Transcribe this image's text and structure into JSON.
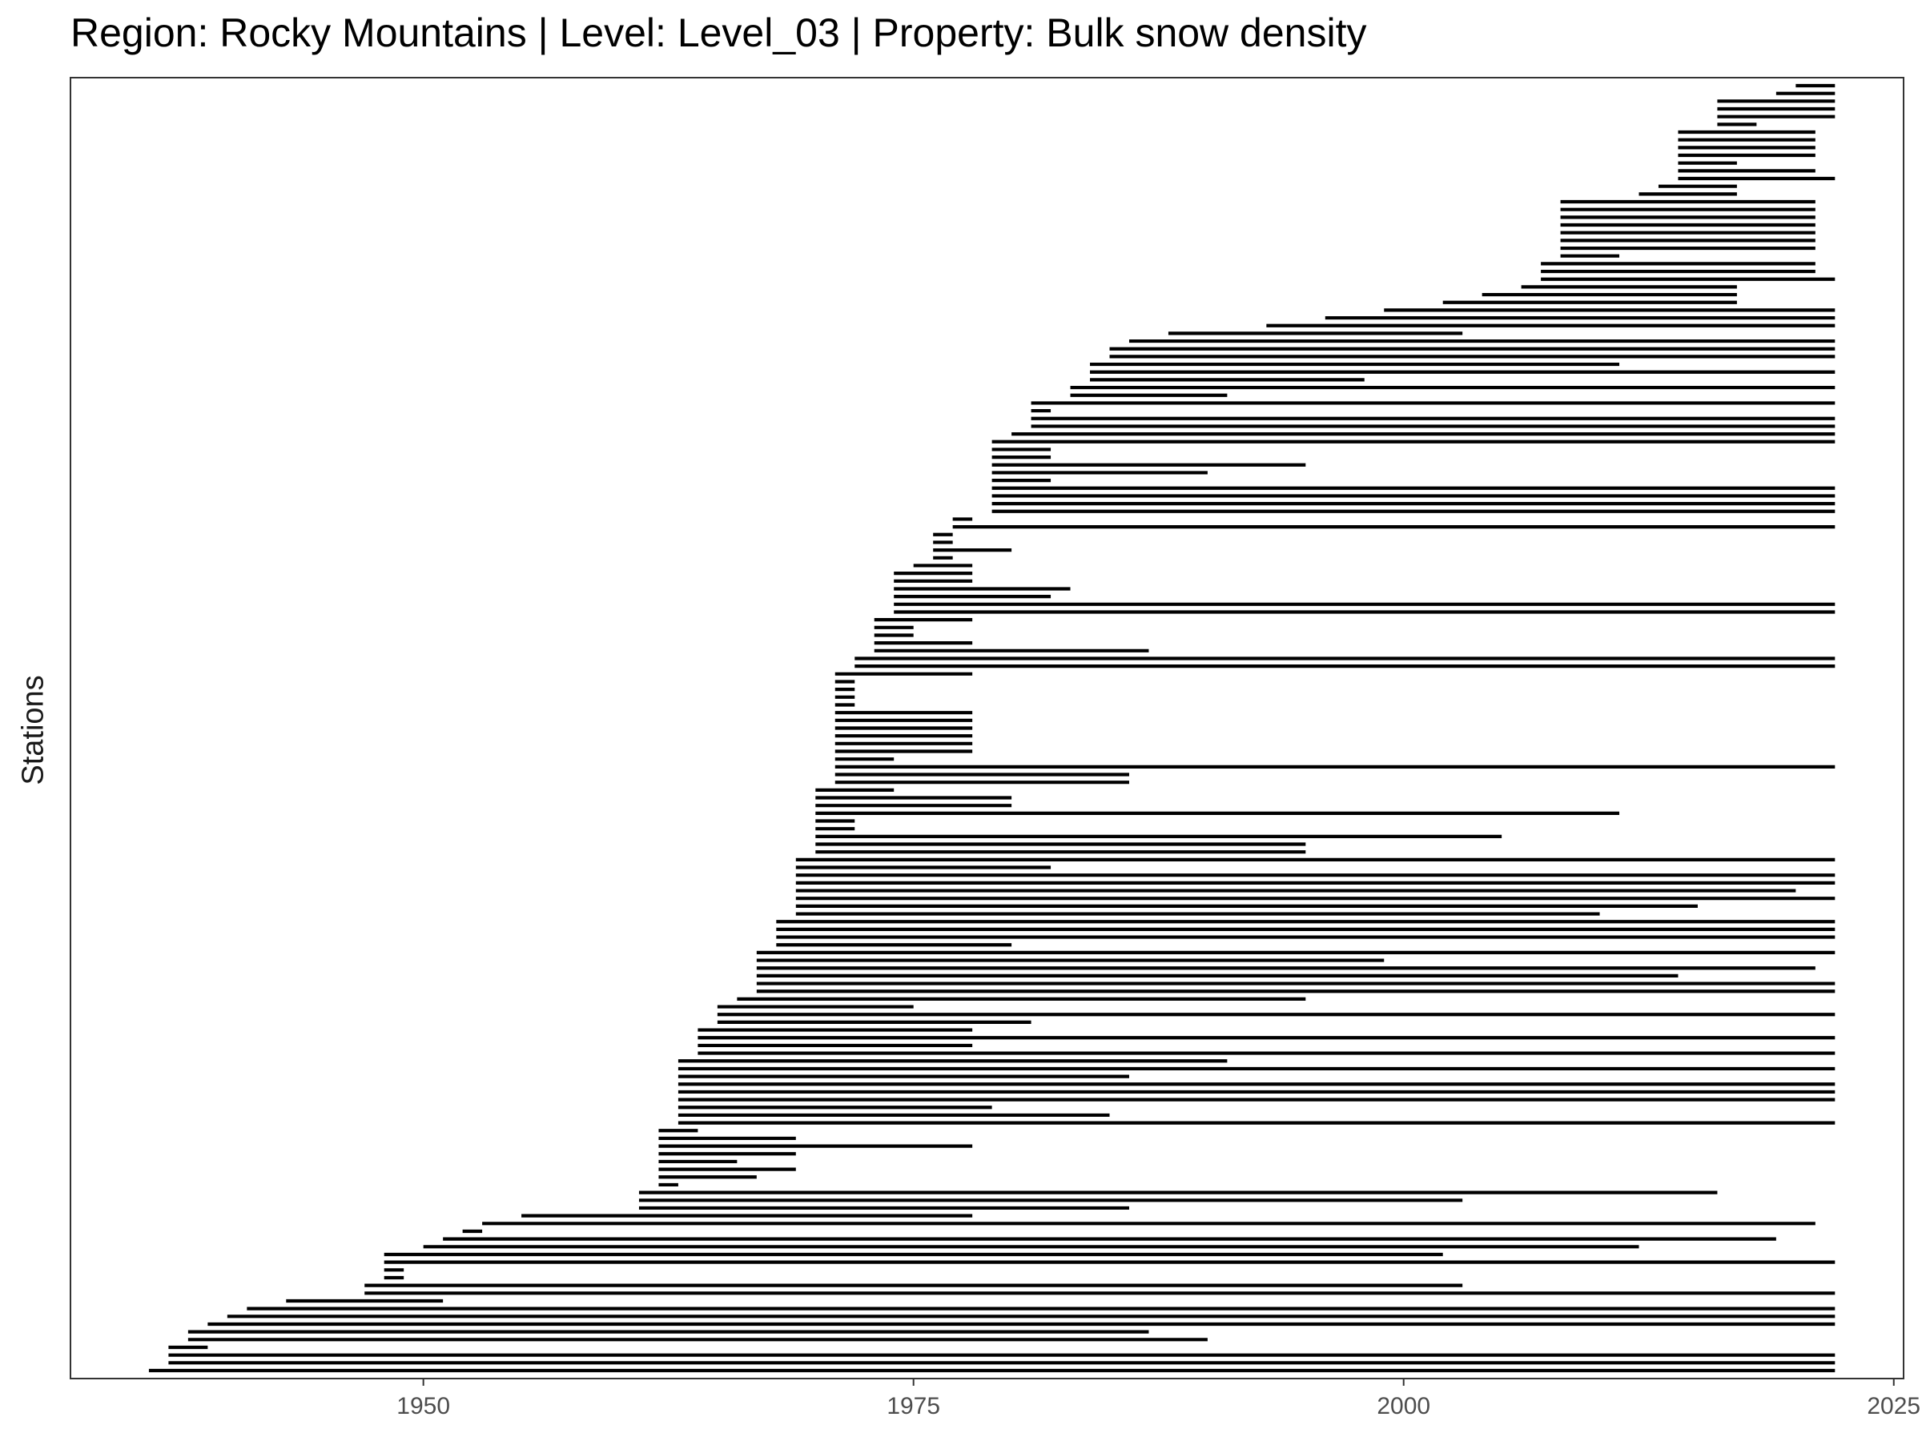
{
  "chart_data": {
    "type": "bar",
    "orientation": "horizontal-range",
    "title": "Region: Rocky Mountains | Level: Level_03 | Property: Bulk snow density",
    "xlabel": "",
    "ylabel": "Stations",
    "xlim": [
      1932,
      2025.5
    ],
    "x_ticks": [
      1950,
      1975,
      2000,
      2025
    ],
    "grid": false,
    "legend": "none",
    "bar_color": "#000000",
    "segments": [
      [
        2020,
        2022
      ],
      [
        2019,
        2022
      ],
      [
        2016,
        2022
      ],
      [
        2016,
        2022
      ],
      [
        2016,
        2022
      ],
      [
        2016,
        2018
      ],
      [
        2014,
        2021
      ],
      [
        2014,
        2021
      ],
      [
        2014,
        2021
      ],
      [
        2014,
        2021
      ],
      [
        2014,
        2017
      ],
      [
        2014,
        2021
      ],
      [
        2014,
        2022
      ],
      [
        2013,
        2017
      ],
      [
        2012,
        2017
      ],
      [
        2008,
        2021
      ],
      [
        2008,
        2021
      ],
      [
        2008,
        2021
      ],
      [
        2008,
        2021
      ],
      [
        2008,
        2021
      ],
      [
        2008,
        2021
      ],
      [
        2008,
        2021
      ],
      [
        2008,
        2011
      ],
      [
        2007,
        2021
      ],
      [
        2007,
        2021
      ],
      [
        2007,
        2022
      ],
      [
        2006,
        2017
      ],
      [
        2004,
        2017
      ],
      [
        2002,
        2017
      ],
      [
        1999,
        2022
      ],
      [
        1996,
        2022
      ],
      [
        1993,
        2022
      ],
      [
        1988,
        2003
      ],
      [
        1986,
        2022
      ],
      [
        1985,
        2022
      ],
      [
        1985,
        2022
      ],
      [
        1984,
        2011
      ],
      [
        1984,
        2022
      ],
      [
        1984,
        1998
      ],
      [
        1983,
        2022
      ],
      [
        1983,
        1991
      ],
      [
        1981,
        2022
      ],
      [
        1981,
        1982
      ],
      [
        1981,
        2022
      ],
      [
        1981,
        2022
      ],
      [
        1980,
        2022
      ],
      [
        1979,
        2022
      ],
      [
        1979,
        1982
      ],
      [
        1979,
        1982
      ],
      [
        1979,
        1995
      ],
      [
        1979,
        1990
      ],
      [
        1979,
        1982
      ],
      [
        1979,
        2022
      ],
      [
        1979,
        2022
      ],
      [
        1979,
        2022
      ],
      [
        1979,
        2022
      ],
      [
        1977,
        1978
      ],
      [
        1977,
        2022
      ],
      [
        1976,
        1977
      ],
      [
        1976,
        1977
      ],
      [
        1976,
        1980
      ],
      [
        1976,
        1977
      ],
      [
        1975,
        1978
      ],
      [
        1974,
        1978
      ],
      [
        1974,
        1978
      ],
      [
        1974,
        1983
      ],
      [
        1974,
        1982
      ],
      [
        1974,
        2022
      ],
      [
        1974,
        2022
      ],
      [
        1973,
        1978
      ],
      [
        1973,
        1975
      ],
      [
        1973,
        1975
      ],
      [
        1973,
        1978
      ],
      [
        1973,
        1987
      ],
      [
        1972,
        2022
      ],
      [
        1972,
        2022
      ],
      [
        1971,
        1978
      ],
      [
        1971,
        1972
      ],
      [
        1971,
        1972
      ],
      [
        1971,
        1972
      ],
      [
        1971,
        1972
      ],
      [
        1971,
        1978
      ],
      [
        1971,
        1978
      ],
      [
        1971,
        1978
      ],
      [
        1971,
        1978
      ],
      [
        1971,
        1978
      ],
      [
        1971,
        1978
      ],
      [
        1971,
        1974
      ],
      [
        1971,
        2022
      ],
      [
        1971,
        1986
      ],
      [
        1971,
        1986
      ],
      [
        1970,
        1974
      ],
      [
        1970,
        1980
      ],
      [
        1970,
        1980
      ],
      [
        1970,
        2011
      ],
      [
        1970,
        1972
      ],
      [
        1970,
        1972
      ],
      [
        1970,
        2005
      ],
      [
        1970,
        1995
      ],
      [
        1970,
        1995
      ],
      [
        1969,
        2022
      ],
      [
        1969,
        1982
      ],
      [
        1969,
        2022
      ],
      [
        1969,
        2022
      ],
      [
        1969,
        2020
      ],
      [
        1969,
        2022
      ],
      [
        1969,
        2015
      ],
      [
        1969,
        2010
      ],
      [
        1968,
        2022
      ],
      [
        1968,
        2022
      ],
      [
        1968,
        2022
      ],
      [
        1968,
        1980
      ],
      [
        1967,
        2022
      ],
      [
        1967,
        1999
      ],
      [
        1967,
        2021
      ],
      [
        1967,
        2014
      ],
      [
        1967,
        2022
      ],
      [
        1967,
        2022
      ],
      [
        1966,
        1995
      ],
      [
        1965,
        1975
      ],
      [
        1965,
        2022
      ],
      [
        1965,
        1981
      ],
      [
        1964,
        1978
      ],
      [
        1964,
        2022
      ],
      [
        1964,
        1978
      ],
      [
        1964,
        2022
      ],
      [
        1963,
        1991
      ],
      [
        1963,
        2022
      ],
      [
        1963,
        1986
      ],
      [
        1963,
        2022
      ],
      [
        1963,
        2022
      ],
      [
        1963,
        2022
      ],
      [
        1963,
        1979
      ],
      [
        1963,
        1985
      ],
      [
        1963,
        2022
      ],
      [
        1962,
        1964
      ],
      [
        1962,
        1969
      ],
      [
        1962,
        1978
      ],
      [
        1962,
        1969
      ],
      [
        1962,
        1966
      ],
      [
        1962,
        1969
      ],
      [
        1962,
        1967
      ],
      [
        1962,
        1963
      ],
      [
        1961,
        2016
      ],
      [
        1961,
        2003
      ],
      [
        1961,
        1986
      ],
      [
        1955,
        1978
      ],
      [
        1953,
        2021
      ],
      [
        1952,
        1953
      ],
      [
        1951,
        2019
      ],
      [
        1950,
        2012
      ],
      [
        1948,
        2002
      ],
      [
        1948,
        2022
      ],
      [
        1948,
        1949
      ],
      [
        1948,
        1949
      ],
      [
        1947,
        2003
      ],
      [
        1947,
        2022
      ],
      [
        1943,
        1951
      ],
      [
        1941,
        2022
      ],
      [
        1940,
        2022
      ],
      [
        1939,
        2022
      ],
      [
        1938,
        1987
      ],
      [
        1938,
        1990
      ],
      [
        1937,
        1939
      ],
      [
        1937,
        2022
      ],
      [
        1937,
        2022
      ],
      [
        1936,
        2022
      ]
    ]
  }
}
